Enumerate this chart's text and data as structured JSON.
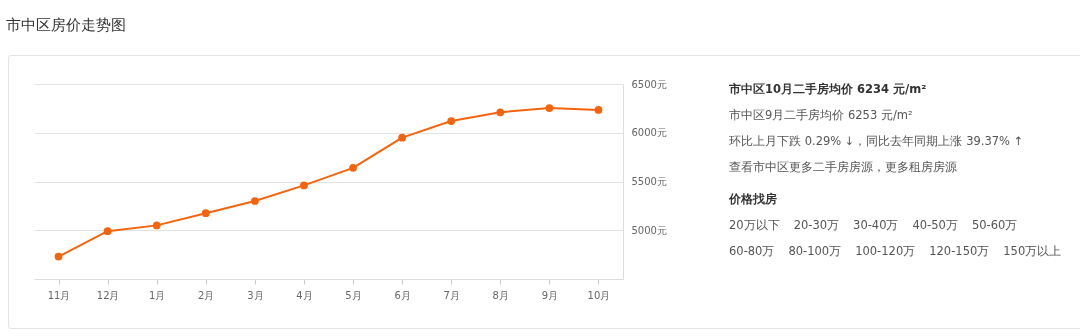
{
  "chart_data": {
    "type": "line",
    "title": "市中区房价走势图",
    "categories": [
      "11月",
      "12月",
      "1月",
      "2月",
      "3月",
      "4月",
      "5月",
      "6月",
      "7月",
      "8月",
      "9月",
      "10月"
    ],
    "series": [
      {
        "color": "#f5640c",
        "values": [
          4730,
          4990,
          5050,
          5175,
          5300,
          5460,
          5640,
          5950,
          6120,
          6210,
          6253,
          6234
        ]
      }
    ],
    "ylim": [
      4500,
      6500
    ],
    "yticks": [
      {
        "value": 5000,
        "label": "5000元"
      },
      {
        "value": 5500,
        "label": "5500元"
      },
      {
        "value": 6000,
        "label": "6000元"
      },
      {
        "value": 6500,
        "label": "6500元"
      }
    ],
    "grid": "y",
    "marker": "circle",
    "line_style": "solid",
    "annotations": [
      "市中区10月二手房均价 6234 元/m²",
      "市中区9月二手房均价 6253 元/m²",
      "环比上月下跌 0.29% ↓，同比去年同期上涨 39.37% ↑",
      "查看市中区更多二手房房源，更多租房房源",
      "价格找房",
      "20万以下",
      "20-30万",
      "30-40万",
      "40-50万",
      "50-60万",
      "60-80万",
      "80-100万",
      "100-120万",
      "120-150万",
      "150万以上"
    ]
  }
}
